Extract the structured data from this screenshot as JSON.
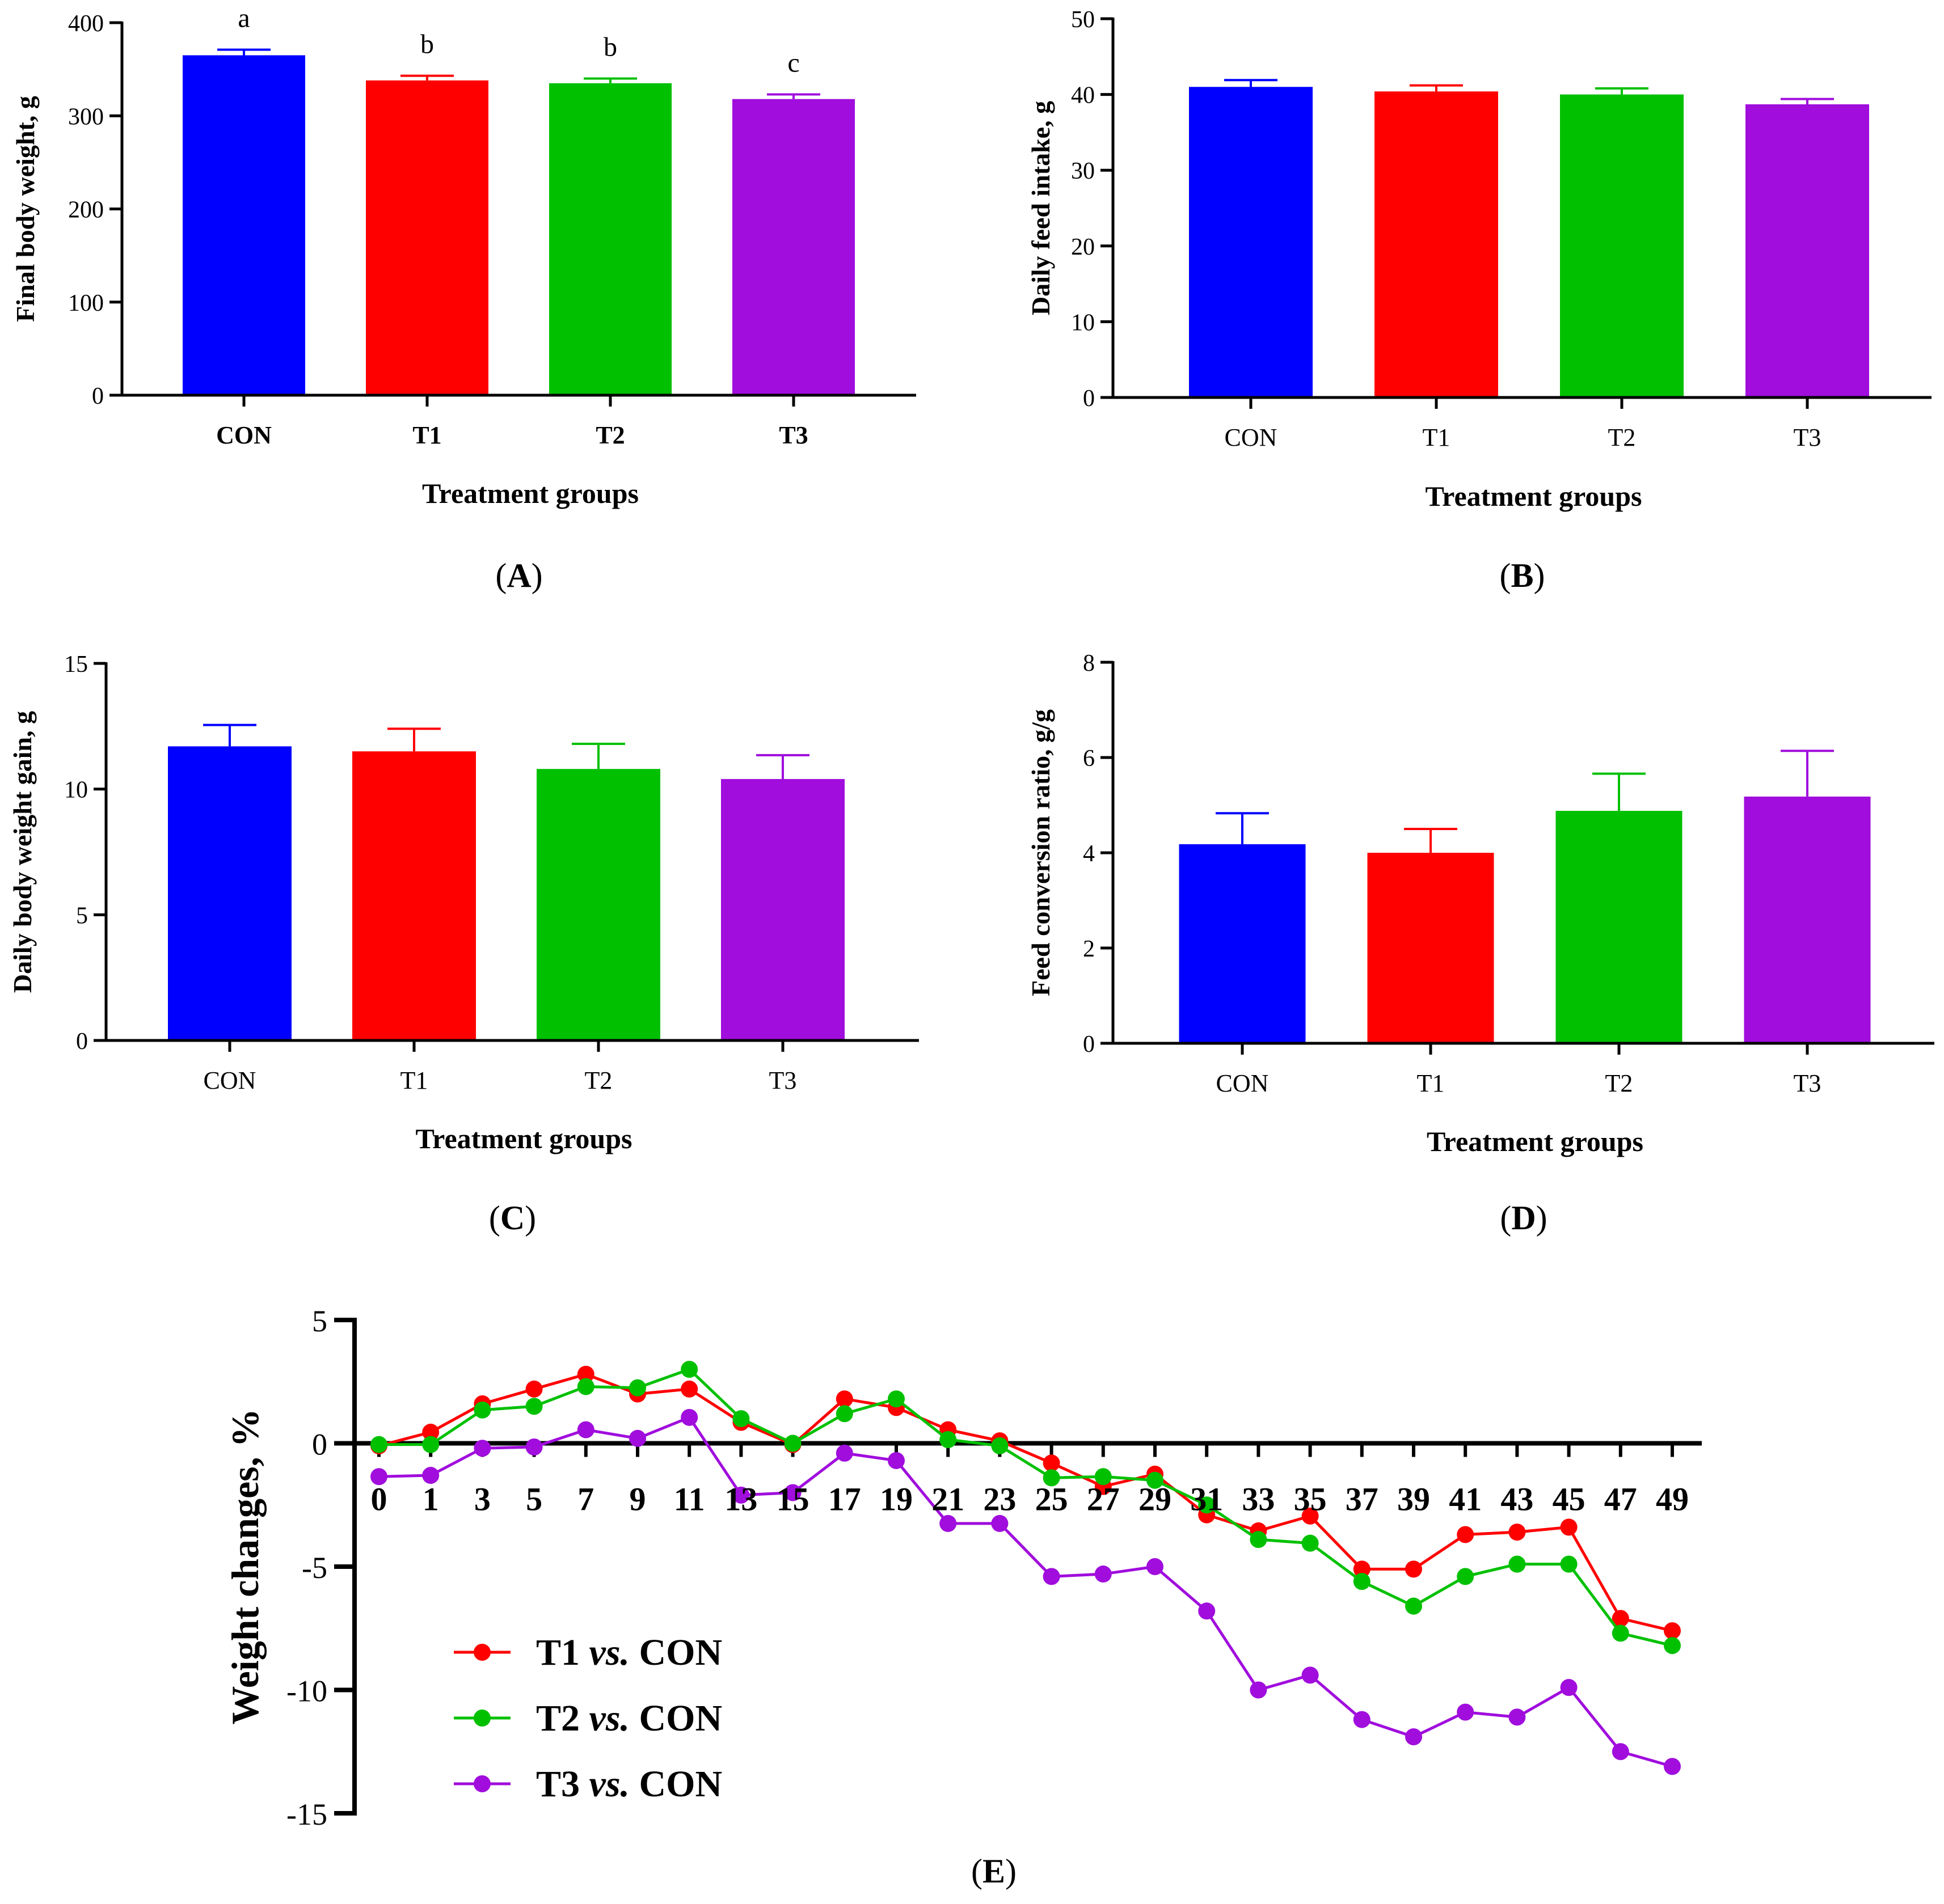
{
  "chart_data": [
    {
      "panel": "A",
      "type": "bar",
      "panel_label": "(A)",
      "categories": [
        "CON",
        "T1",
        "T2",
        "T3"
      ],
      "values": [
        365,
        338,
        335,
        318
      ],
      "errors": [
        6,
        5,
        5,
        5
      ],
      "sig_letters": [
        "a",
        "b",
        "b",
        "c"
      ],
      "colors": [
        "#0000ff",
        "#ff0000",
        "#00c000",
        "#a00ddd"
      ],
      "ylabel": "Final body weight, g",
      "xlabel": "Treatment groups",
      "ylim": [
        0,
        400
      ],
      "yticks": [
        0,
        100,
        200,
        300,
        400
      ],
      "tick_labels_bold": true
    },
    {
      "panel": "B",
      "type": "bar",
      "panel_label": "(B)",
      "categories": [
        "CON",
        "T1",
        "T2",
        "T3"
      ],
      "values": [
        41.0,
        40.4,
        40.0,
        38.7
      ],
      "errors": [
        0.9,
        0.8,
        0.8,
        0.7
      ],
      "colors": [
        "#0000ff",
        "#ff0000",
        "#00c000",
        "#a00ddd"
      ],
      "ylabel": "Daily feed intake, g",
      "xlabel": "Treatment groups",
      "ylim": [
        0,
        50
      ],
      "yticks": [
        0,
        10,
        20,
        30,
        40,
        50
      ],
      "tick_labels_bold": false
    },
    {
      "panel": "C",
      "type": "bar",
      "panel_label": "(C)",
      "categories": [
        "CON",
        "T1",
        "T2",
        "T3"
      ],
      "values": [
        11.7,
        11.5,
        10.8,
        10.4
      ],
      "errors": [
        0.85,
        0.9,
        1.0,
        0.95
      ],
      "colors": [
        "#0000ff",
        "#ff0000",
        "#00c000",
        "#a00ddd"
      ],
      "ylabel": "Daily body weight gain, g",
      "xlabel": "Treatment groups",
      "ylim": [
        0,
        15
      ],
      "yticks": [
        0,
        5,
        10,
        15
      ],
      "tick_labels_bold": false
    },
    {
      "panel": "D",
      "type": "bar",
      "panel_label": "(D)",
      "categories": [
        "CON",
        "T1",
        "T2",
        "T3"
      ],
      "values": [
        4.18,
        4.0,
        4.88,
        5.18
      ],
      "errors": [
        0.65,
        0.5,
        0.78,
        0.96
      ],
      "colors": [
        "#0000ff",
        "#ff0000",
        "#00c000",
        "#a00ddd"
      ],
      "ylabel": "Feed conversion ratio, g/g",
      "xlabel": "Treatment groups",
      "ylim": [
        0,
        8
      ],
      "yticks": [
        0,
        2,
        4,
        6,
        8
      ],
      "tick_labels_bold": false
    },
    {
      "panel": "E",
      "type": "line",
      "panel_label": "(E)",
      "ylabel": "Weight changes, %",
      "ylim": [
        -15,
        5
      ],
      "yticks": [
        5,
        0,
        -5,
        -10,
        -15
      ],
      "x": [
        "0",
        "1",
        "3",
        "5",
        "7",
        "9",
        "11",
        "13",
        "15",
        "17",
        "19",
        "21",
        "23",
        "25",
        "27",
        "29",
        "31",
        "33",
        "35",
        "37",
        "39",
        "41",
        "43",
        "45",
        "47",
        "49"
      ],
      "series": [
        {
          "name": "T1",
          "legend_prefix": "T1 ",
          "legend_italic": "vs.",
          "legend_suffix": " CON",
          "color": "#ff0000",
          "values": [
            -0.1,
            0.45,
            1.6,
            2.2,
            2.8,
            2.0,
            2.2,
            0.85,
            -0.05,
            1.8,
            1.45,
            0.55,
            0.1,
            -0.8,
            -1.75,
            -1.25,
            -2.9,
            -3.55,
            -2.95,
            -5.1,
            -5.1,
            -3.7,
            -3.6,
            -3.4,
            -7.1,
            -7.6
          ]
        },
        {
          "name": "T2",
          "legend_prefix": "T2 ",
          "legend_italic": "vs.",
          "legend_suffix": " CON",
          "color": "#00c000",
          "values": [
            -0.05,
            -0.05,
            1.35,
            1.5,
            2.3,
            2.25,
            3.0,
            1.0,
            0.0,
            1.2,
            1.8,
            0.15,
            -0.1,
            -1.4,
            -1.35,
            -1.5,
            -2.5,
            -3.9,
            -4.05,
            -5.6,
            -6.6,
            -5.4,
            -4.9,
            -4.9,
            -7.7,
            -8.2
          ]
        },
        {
          "name": "T3",
          "legend_prefix": "T3 ",
          "legend_italic": "vs.",
          "legend_suffix": " CON",
          "color": "#a00ddd",
          "values": [
            -1.35,
            -1.3,
            -0.2,
            -0.15,
            0.55,
            0.2,
            1.05,
            -2.1,
            -2.0,
            -0.4,
            -0.7,
            -3.25,
            -3.25,
            -5.4,
            -5.3,
            -5.0,
            -6.8,
            -10.0,
            -9.4,
            -11.2,
            -11.9,
            -10.9,
            -11.1,
            -9.9,
            -12.5,
            -13.1
          ]
        }
      ]
    }
  ]
}
